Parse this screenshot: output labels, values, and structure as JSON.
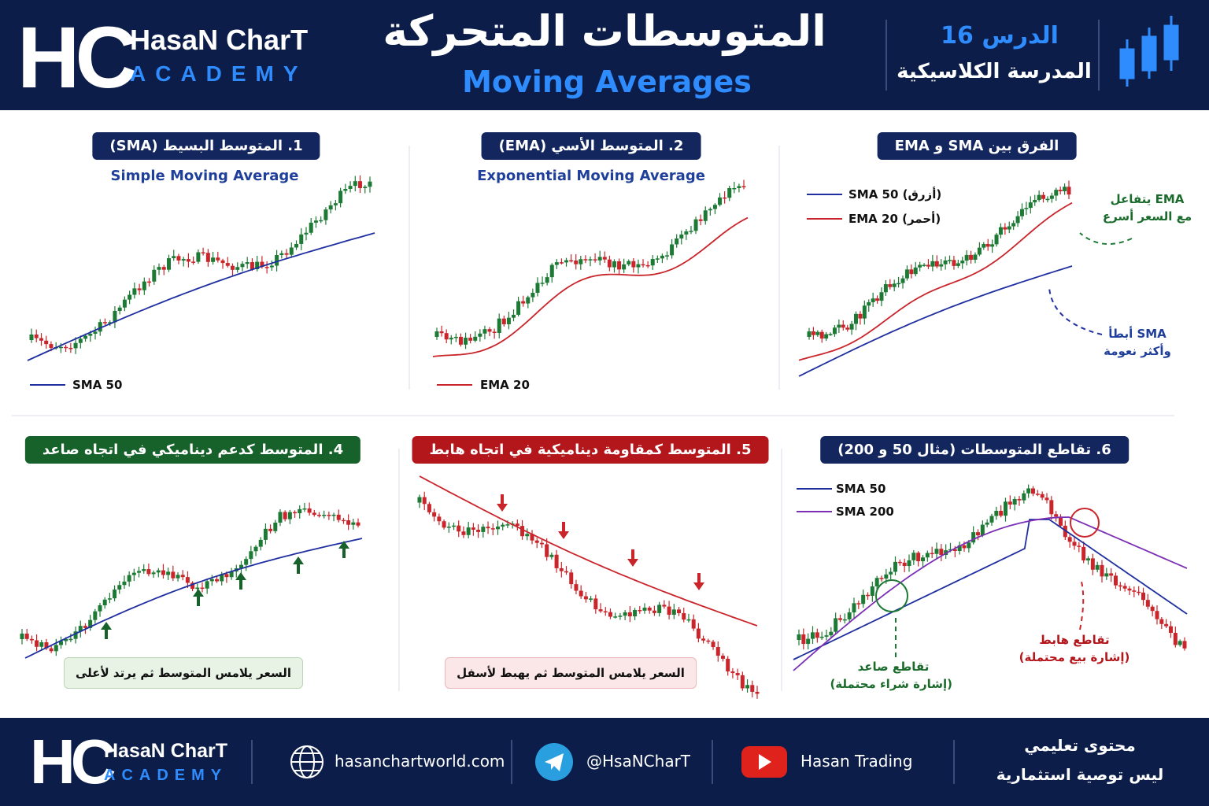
{
  "header": {
    "logo_mark": "HC",
    "brand_name": "HasaN CharT",
    "brand_sub": "ACADEMY",
    "title_ar": "المتوسطات المتحركة",
    "title_en": "Moving Averages",
    "lesson": "الدرس 16",
    "school": "المدرسة الكلاسيكية"
  },
  "panels": [
    {
      "title": "1. المتوسط البسيط (SMA)",
      "subtitle": "Simple Moving Average",
      "legend": [
        "SMA 50"
      ]
    },
    {
      "title": "2. المتوسط الأسي (EMA)",
      "subtitle": "Exponential Moving Average",
      "legend": [
        "EMA 20"
      ]
    },
    {
      "title": "الفرق بين SMA و EMA",
      "legend": [
        "SMA 50 (أزرق)",
        "EMA 20 (أحمر)"
      ],
      "annotations": [
        [
          "EMA يتفاعل",
          "مع السعر أسرع"
        ],
        [
          "SMA أبطأ",
          "وأكثر نعومة"
        ]
      ]
    },
    {
      "title": "4. المتوسط كدعم ديناميكي في اتجاه صاعد",
      "caption": "السعر يلامس المتوسط ثم يرتد لأعلى"
    },
    {
      "title": "5. المتوسط كمقاومة ديناميكية في اتجاه هابط",
      "caption": "السعر يلامس المتوسط ثم يهبط لأسفل"
    },
    {
      "title": "6. تقاطع المتوسطات (مثال 50 و 200)",
      "legend": [
        "SMA 50",
        "SMA 200"
      ],
      "annotations": [
        [
          "تقاطع صاعد",
          "(إشارة شراء محتملة)"
        ],
        [
          "تقاطع هابط",
          "(إشارة بيع محتملة)"
        ]
      ]
    }
  ],
  "footer": {
    "logo_mark": "HC",
    "brand_name": "HasaN CharT",
    "brand_sub": "ACADEMY",
    "website": "hasanchartworld.com",
    "telegram": "@HsaNCharT",
    "youtube": "Hasan Trading",
    "disclaimer": [
      "محتوى تعليمي",
      "ليس توصية استثمارية"
    ]
  }
}
